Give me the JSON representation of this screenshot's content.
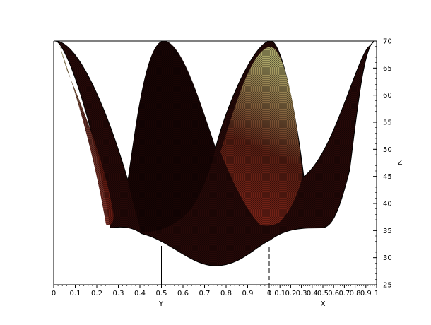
{
  "chart_data": {
    "type": "surface3d",
    "title": "",
    "surface_description": "3D surface plot over X in [0,1] and Y in [0,1]; Z ranges about 28 to 70. The surface shows four crests reaching Z=70 at the tops and a valley dipping to about 28.5. Rendered as a dense dark mesh with red/yellow shading on the sunlit faces.",
    "crests": [
      {
        "name": "crest-1",
        "z": 70
      },
      {
        "name": "crest-2",
        "z": 70
      },
      {
        "name": "crest-3",
        "z": 70
      },
      {
        "name": "crest-4",
        "z": 70
      }
    ],
    "minimum_z": 28.5,
    "saddle_z": 35.5,
    "y_axis": {
      "label": "Y",
      "range": [
        0,
        1
      ],
      "ticks": [
        "0",
        "0.1",
        "0.2",
        "0.3",
        "0.4",
        "0.5",
        "0.6",
        "0.7",
        "0.8",
        "0.9",
        "1"
      ]
    },
    "x_axis": {
      "label": "X",
      "range": [
        0,
        1
      ],
      "ticks": [
        "0",
        "0.1",
        "0.2",
        "0.3",
        "0.4",
        "0.5",
        "0.6",
        "0.7",
        "0.8",
        "0.9",
        "1"
      ]
    },
    "z_axis": {
      "label": "Z",
      "range": [
        25,
        70
      ],
      "ticks": [
        "25",
        "30",
        "35",
        "40",
        "45",
        "50",
        "55",
        "60",
        "65",
        "70"
      ]
    },
    "colors": {
      "mesh": "#000000",
      "face_dark": "#2a0a08",
      "face_red": "#8b2418",
      "face_light": "#c8c26a"
    }
  }
}
